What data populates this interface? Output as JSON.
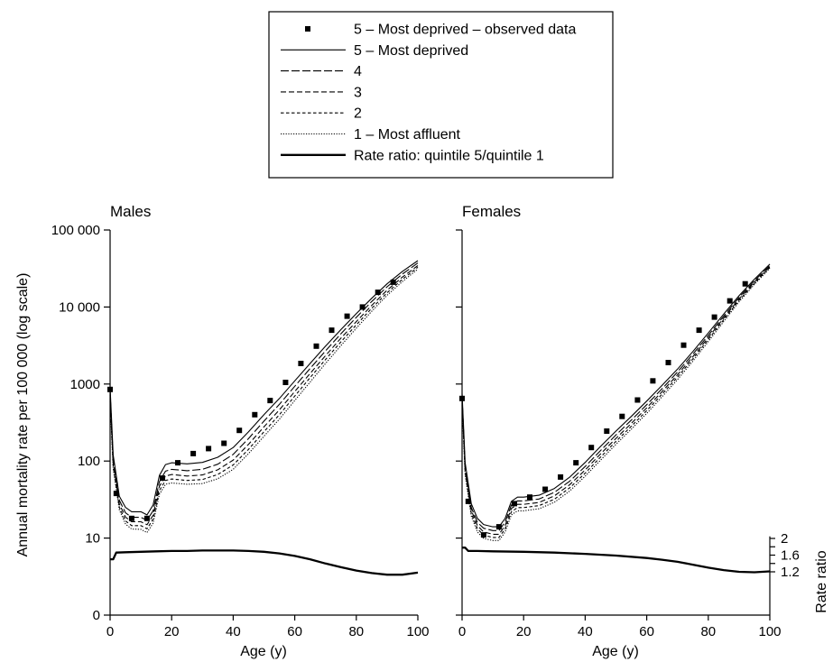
{
  "legend": {
    "items": [
      {
        "label": "5 – Most deprived – observed data",
        "style": "marker"
      },
      {
        "label": "5 – Most deprived",
        "style": "solid"
      },
      {
        "label": "4",
        "style": "dash-long"
      },
      {
        "label": "3",
        "style": "dash-medium"
      },
      {
        "label": "2",
        "style": "dash-short"
      },
      {
        "label": "1 – Most affluent",
        "style": "dotted"
      },
      {
        "label": "Rate ratio: quintile 5/quintile 1",
        "style": "thick"
      }
    ]
  },
  "shared": {
    "ylabel": "Annual mortality rate per 100 000 (log scale)",
    "y2label": "Rate ratio",
    "y_ticks": [
      {
        "value": 10,
        "label": "10"
      },
      {
        "value": 100,
        "label": "100"
      },
      {
        "value": 1000,
        "label": "1000"
      },
      {
        "value": 10000,
        "label": "10 000"
      },
      {
        "value": 100000,
        "label": "100 000"
      }
    ],
    "y_zero_label": "0",
    "y2_ticks": [
      {
        "value": 1.2,
        "label": "1.2"
      },
      {
        "value": 1.6,
        "label": "1.6"
      },
      {
        "value": 2.0,
        "label": "2"
      }
    ]
  },
  "chart_data": [
    {
      "type": "line",
      "title": "Males",
      "xlabel": "Age (y)",
      "ylabel": "Annual mortality rate per 100 000 (log scale)",
      "yscale": "log",
      "xlim": [
        0,
        100
      ],
      "ylim": [
        1,
        100000
      ],
      "x_ticks": [
        0,
        20,
        40,
        60,
        80,
        100
      ],
      "observed": {
        "name": "5 – Most deprived – observed data",
        "x": [
          0,
          2,
          7,
          12,
          17,
          22,
          27,
          32,
          37,
          42,
          47,
          52,
          57,
          62,
          67,
          72,
          77,
          82,
          87,
          92
        ],
        "y": [
          850,
          38,
          18,
          18,
          60,
          95,
          125,
          145,
          170,
          250,
          400,
          610,
          1050,
          1850,
          3100,
          5000,
          7600,
          10000,
          15500,
          21000
        ]
      },
      "series": [
        {
          "name": "5 – Most deprived",
          "style": "solid",
          "x": [
            0,
            1,
            3,
            5,
            7,
            10,
            12,
            14,
            16,
            18,
            20,
            25,
            30,
            35,
            40,
            45,
            50,
            55,
            60,
            65,
            70,
            75,
            80,
            85,
            90,
            95,
            100
          ],
          "y": [
            900,
            120,
            35,
            25,
            22,
            22,
            20,
            27,
            65,
            90,
            95,
            92,
            96,
            112,
            150,
            240,
            400,
            650,
            1100,
            1850,
            3100,
            5100,
            8200,
            13000,
            20000,
            29000,
            40000
          ]
        },
        {
          "name": "4",
          "style": "dash-long",
          "x": [
            0,
            1,
            3,
            5,
            7,
            10,
            12,
            14,
            16,
            18,
            20,
            25,
            30,
            35,
            40,
            45,
            50,
            55,
            60,
            65,
            70,
            75,
            80,
            85,
            90,
            95,
            100
          ],
          "y": [
            800,
            106,
            31,
            21.3,
            18.6,
            18.6,
            17,
            22.7,
            54,
            74,
            78,
            75,
            78,
            91,
            122,
            196,
            330,
            545,
            935,
            1590,
            2700,
            4500,
            7330,
            11800,
            18300,
            26800,
            37300
          ]
        },
        {
          "name": "3",
          "style": "dash-medium",
          "x": [
            0,
            1,
            3,
            5,
            7,
            10,
            12,
            14,
            16,
            18,
            20,
            25,
            30,
            35,
            40,
            45,
            50,
            55,
            60,
            65,
            70,
            75,
            80,
            85,
            90,
            95,
            100
          ],
          "y": [
            720,
            96,
            27.8,
            18.7,
            16.3,
            16.3,
            14.9,
            19.8,
            47,
            64,
            67,
            64,
            66,
            77,
            103,
            165,
            278,
            462,
            800,
            1370,
            2340,
            3940,
            6460,
            10500,
            16500,
            24500,
            34500
          ]
        },
        {
          "name": "2",
          "style": "dash-short",
          "x": [
            0,
            1,
            3,
            5,
            7,
            10,
            12,
            14,
            16,
            18,
            20,
            25,
            30,
            35,
            40,
            45,
            50,
            55,
            60,
            65,
            70,
            75,
            80,
            85,
            90,
            95,
            100
          ],
          "y": [
            650,
            87,
            25.2,
            16.7,
            14.5,
            14.5,
            13.2,
            17.6,
            41.5,
            56,
            58.5,
            56,
            57.5,
            67,
            89,
            142,
            240,
            400,
            697,
            1210,
            2080,
            3530,
            5860,
            9630,
            15300,
            22900,
            32800
          ]
        },
        {
          "name": "1 – Most affluent",
          "style": "dotted",
          "x": [
            0,
            1,
            3,
            5,
            7,
            10,
            12,
            14,
            16,
            18,
            20,
            25,
            30,
            35,
            40,
            45,
            50,
            55,
            60,
            65,
            70,
            75,
            80,
            85,
            90,
            95,
            100
          ],
          "y": [
            600,
            80,
            23.3,
            15.2,
            13.1,
            13,
            11.8,
            15.7,
            37,
            50,
            52,
            50,
            51,
            59,
            78,
            125,
            210,
            350,
            611,
            1060,
            1850,
            3160,
            5300,
            8800,
            14200,
            21400,
            31000
          ]
        }
      ],
      "ratio": {
        "name": "Rate ratio: quintile 5/quintile 1",
        "ylim": [
          1,
          2.2
        ],
        "x": [
          0,
          1,
          2,
          5,
          10,
          15,
          20,
          25,
          30,
          35,
          40,
          45,
          50,
          55,
          60,
          65,
          70,
          75,
          80,
          85,
          90,
          95,
          100
        ],
        "y": [
          1.5,
          1.5,
          1.66,
          1.67,
          1.68,
          1.69,
          1.7,
          1.7,
          1.71,
          1.71,
          1.71,
          1.7,
          1.68,
          1.64,
          1.58,
          1.5,
          1.4,
          1.31,
          1.23,
          1.17,
          1.13,
          1.13,
          1.18
        ]
      }
    },
    {
      "type": "line",
      "title": "Females",
      "xlabel": "Age (y)",
      "ylabel": "",
      "yscale": "log",
      "xlim": [
        0,
        100
      ],
      "ylim": [
        1,
        100000
      ],
      "x_ticks": [
        0,
        20,
        40,
        60,
        80,
        100
      ],
      "observed": {
        "name": "5 – Most deprived – observed data",
        "x": [
          0,
          2,
          7,
          12,
          17,
          22,
          27,
          32,
          37,
          42,
          47,
          52,
          57,
          62,
          67,
          72,
          77,
          82,
          87,
          92
        ],
        "y": [
          650,
          30,
          11,
          14,
          28,
          34,
          43,
          62,
          95,
          150,
          245,
          380,
          620,
          1100,
          1900,
          3200,
          5000,
          7400,
          12000,
          20000
        ]
      },
      "series": [
        {
          "name": "5 – Most deprived",
          "style": "solid",
          "x": [
            0,
            1,
            3,
            5,
            7,
            10,
            12,
            14,
            16,
            18,
            20,
            25,
            30,
            35,
            40,
            45,
            50,
            55,
            60,
            65,
            70,
            75,
            80,
            85,
            90,
            95,
            100
          ],
          "y": [
            750,
            95,
            28,
            18,
            15,
            14,
            14,
            18,
            30,
            34,
            34,
            36,
            44,
            62,
            96,
            155,
            245,
            380,
            600,
            960,
            1560,
            2650,
            4600,
            8100,
            14000,
            23000,
            36000
          ]
        },
        {
          "name": "4",
          "style": "dash-long",
          "x": [
            0,
            1,
            3,
            5,
            7,
            10,
            12,
            14,
            16,
            18,
            20,
            25,
            30,
            35,
            40,
            45,
            50,
            55,
            60,
            65,
            70,
            75,
            80,
            85,
            90,
            95,
            100
          ],
          "y": [
            680,
            86,
            25,
            16,
            13.4,
            12.5,
            12.5,
            16.1,
            26.8,
            30.4,
            30.4,
            32.1,
            39.2,
            55,
            85,
            137,
            218,
            340,
            540,
            870,
            1430,
            2450,
            4290,
            7610,
            13300,
            22000,
            34600
          ]
        },
        {
          "name": "3",
          "style": "dash-medium",
          "x": [
            0,
            1,
            3,
            5,
            7,
            10,
            12,
            14,
            16,
            18,
            20,
            25,
            30,
            35,
            40,
            45,
            50,
            55,
            60,
            65,
            70,
            75,
            80,
            85,
            90,
            95,
            100
          ],
          "y": [
            620,
            78,
            23,
            14.5,
            12,
            11.2,
            11.2,
            14.5,
            24.2,
            27.4,
            27.4,
            29,
            35.3,
            49.5,
            76.5,
            124,
            197,
            308,
            491,
            798,
            1320,
            2270,
            4020,
            7190,
            12700,
            21100,
            33500
          ]
        },
        {
          "name": "2",
          "style": "dash-short",
          "x": [
            0,
            1,
            3,
            5,
            7,
            10,
            12,
            14,
            16,
            18,
            20,
            25,
            30,
            35,
            40,
            45,
            50,
            55,
            60,
            65,
            70,
            75,
            80,
            85,
            90,
            95,
            100
          ],
          "y": [
            570,
            72,
            21,
            13.2,
            10.9,
            10.2,
            10.2,
            13.2,
            22,
            24.9,
            24.9,
            26.4,
            32,
            45,
            69.6,
            113,
            180,
            282,
            451,
            739,
            1230,
            2130,
            3790,
            6840,
            12200,
            20400,
            32600
          ]
        },
        {
          "name": "1 – Most affluent",
          "style": "dotted",
          "x": [
            0,
            1,
            3,
            5,
            7,
            10,
            12,
            14,
            16,
            18,
            20,
            25,
            30,
            35,
            40,
            45,
            50,
            55,
            60,
            65,
            70,
            75,
            80,
            85,
            90,
            95,
            100
          ],
          "y": [
            530,
            66,
            19.3,
            12,
            9.9,
            9.3,
            9.3,
            12,
            20,
            22.6,
            22.6,
            24,
            29.2,
            41,
            63.5,
            103,
            165,
            259,
            415,
            683,
            1140,
            1990,
            3560,
            6480,
            11700,
            19700,
            31800
          ]
        }
      ],
      "ratio": {
        "name": "Rate ratio: quintile 5/quintile 1",
        "ylim": [
          1,
          2.2
        ],
        "x": [
          0,
          1,
          2,
          5,
          10,
          20,
          30,
          40,
          50,
          60,
          65,
          70,
          75,
          80,
          85,
          90,
          95,
          100
        ],
        "y": [
          1.78,
          1.78,
          1.7,
          1.7,
          1.69,
          1.68,
          1.66,
          1.63,
          1.59,
          1.53,
          1.49,
          1.44,
          1.37,
          1.3,
          1.24,
          1.2,
          1.19,
          1.21
        ]
      }
    }
  ]
}
